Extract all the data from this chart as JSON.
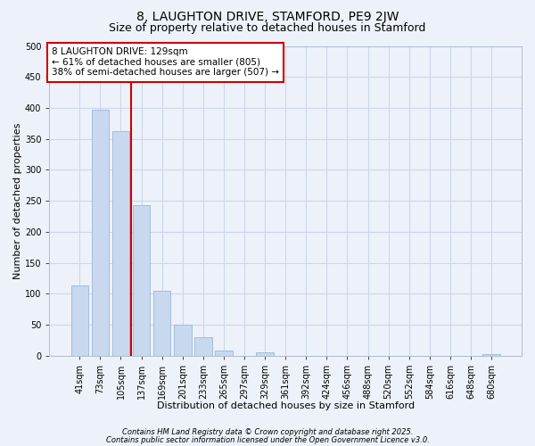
{
  "title": "8, LAUGHTON DRIVE, STAMFORD, PE9 2JW",
  "subtitle": "Size of property relative to detached houses in Stamford",
  "xlabel": "Distribution of detached houses by size in Stamford",
  "ylabel": "Number of detached properties",
  "bar_labels": [
    "41sqm",
    "73sqm",
    "105sqm",
    "137sqm",
    "169sqm",
    "201sqm",
    "233sqm",
    "265sqm",
    "297sqm",
    "329sqm",
    "361sqm",
    "392sqm",
    "424sqm",
    "456sqm",
    "488sqm",
    "520sqm",
    "552sqm",
    "584sqm",
    "616sqm",
    "648sqm",
    "680sqm"
  ],
  "bar_values": [
    113,
    397,
    363,
    243,
    105,
    50,
    30,
    8,
    0,
    5,
    0,
    0,
    0,
    0,
    0,
    0,
    0,
    0,
    0,
    0,
    3
  ],
  "bar_color": "#c8d8ef",
  "bar_edge_color": "#9bb5d8",
  "vline_color": "#cc0000",
  "vline_x_index": 2.5,
  "annotation_text": "8 LAUGHTON DRIVE: 129sqm\n← 61% of detached houses are smaller (805)\n38% of semi-detached houses are larger (507) →",
  "annotation_box_color": "#ffffff",
  "annotation_box_edge_color": "#cc0000",
  "ylim": [
    0,
    500
  ],
  "yticks": [
    0,
    50,
    100,
    150,
    200,
    250,
    300,
    350,
    400,
    450,
    500
  ],
  "grid_color": "#ccd6e8",
  "bg_color": "#edf2fa",
  "footer_line1": "Contains HM Land Registry data © Crown copyright and database right 2025.",
  "footer_line2": "Contains public sector information licensed under the Open Government Licence v3.0.",
  "title_fontsize": 10,
  "subtitle_fontsize": 9,
  "axis_label_fontsize": 8,
  "tick_fontsize": 7,
  "annotation_fontsize": 7.5,
  "footer_fontsize": 6
}
